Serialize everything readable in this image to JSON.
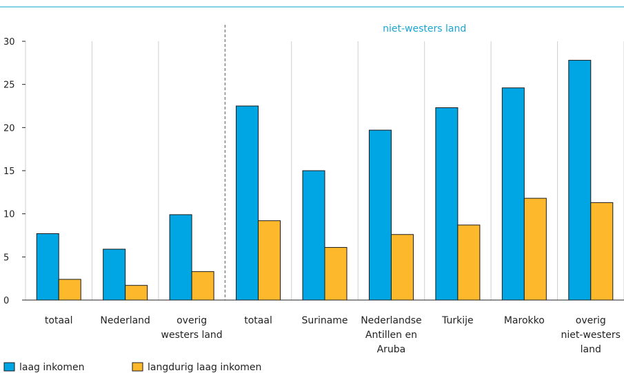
{
  "chart_data": {
    "type": "bar",
    "categories": [
      [
        "totaal"
      ],
      [
        "Nederland"
      ],
      [
        "overig",
        "westers land"
      ],
      [
        "totaal"
      ],
      [
        "Suriname"
      ],
      [
        "Nederlandse",
        "Antillen en",
        "Aruba"
      ],
      [
        "Turkije"
      ],
      [
        "Marokko"
      ],
      [
        "overig",
        "niet-westers",
        "land"
      ]
    ],
    "series": [
      {
        "name": "laag inkomen",
        "values": [
          7.7,
          5.9,
          9.9,
          22.5,
          15.0,
          19.7,
          22.3,
          24.6,
          27.8
        ]
      },
      {
        "name": "langdurig laag inkomen",
        "values": [
          2.4,
          1.7,
          3.3,
          9.2,
          6.1,
          7.6,
          8.7,
          11.8,
          11.3
        ]
      }
    ],
    "group_label": "niet-westers land",
    "yticks": [
      0,
      5,
      10,
      15,
      20,
      25,
      30
    ],
    "ylim": [
      0,
      30
    ],
    "grid": "vertical",
    "legend": "bottom-left",
    "colors": {
      "laag_inkomen": "#00a5e3",
      "langdurig": "#fdb92b",
      "top_rule": "#38b6d8",
      "group_label": "#1aa4d4",
      "grid": "#cfcfcf"
    }
  }
}
